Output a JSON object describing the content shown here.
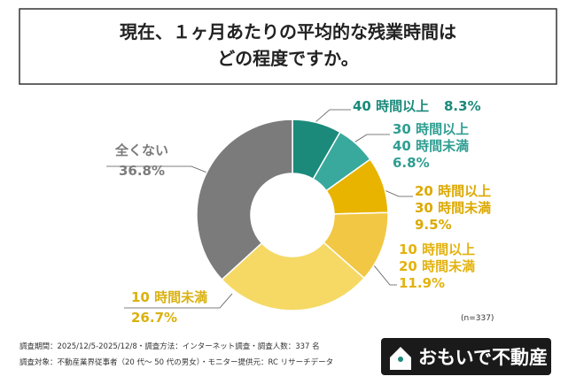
{
  "chart_data": {
    "type": "donut",
    "title": [
      "現在、１ヶ月あたりの平均的な残業時間は",
      "どの程度ですか。"
    ],
    "categories": [
      [
        "40 時間以上"
      ],
      [
        "30 時間以上",
        "40 時間未満"
      ],
      [
        "20 時間以上",
        "30 時間未満"
      ],
      [
        "10 時間以上",
        "20 時間未満"
      ],
      [
        "10 時間未満"
      ],
      [
        "全くない"
      ]
    ],
    "values": [
      8.3,
      6.8,
      9.5,
      11.9,
      26.7,
      36.8
    ],
    "value_labels": [
      "8.3%",
      "6.8%",
      "9.5%",
      "11.9%",
      "26.7%",
      "36.8%"
    ],
    "colors": [
      "#1b8a7b",
      "#3aa99d",
      "#e8b400",
      "#f2c744",
      "#f5d964",
      "#7b7b7b"
    ],
    "label_colors": [
      "#1b8a7b",
      "#2f9e92",
      "#dca900",
      "#e3b20f",
      "#d9b10f",
      "#7b7b7b"
    ],
    "note": "(n=337)",
    "footnotes": [
      "調査期間：2025/12/5-2025/12/8・調査方法：インターネット調査・調査人数：337 名",
      "調査対象：不動産業界従事者（20 代〜 50 代の男女）・モニター提供元：RC リサーチデータ"
    ],
    "brand": "おもいで不動産"
  }
}
